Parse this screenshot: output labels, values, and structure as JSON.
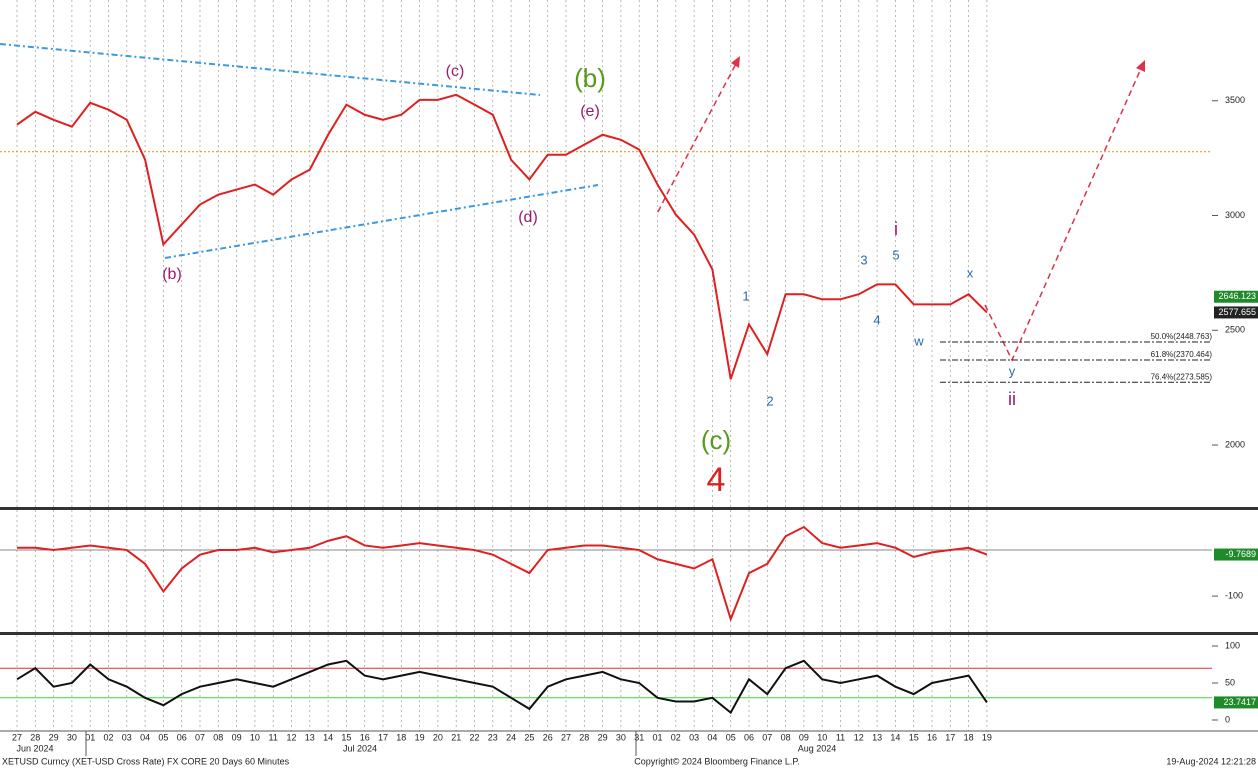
{
  "chart_data": [
    {
      "type": "line",
      "categories": [
        "27",
        "28",
        "29",
        "30",
        "01",
        "02",
        "03",
        "04",
        "05",
        "06",
        "07",
        "08",
        "09",
        "10",
        "11",
        "12",
        "13",
        "14",
        "15",
        "16",
        "17",
        "18",
        "19",
        "20",
        "21",
        "22",
        "23",
        "24",
        "25",
        "26",
        "27",
        "28",
        "29",
        "30",
        "31",
        "01",
        "02",
        "03",
        "04",
        "05",
        "06",
        "07",
        "08",
        "09",
        "10",
        "11",
        "12",
        "13",
        "14",
        "15",
        "16",
        "17",
        "18",
        "19"
      ],
      "month_labels": [
        "Jun 2024",
        "Jul 2024",
        "Aug 2024"
      ],
      "values": [
        3396,
        3452,
        3417,
        3387,
        3491,
        3461,
        3417,
        3243,
        2874,
        2961,
        3048,
        3091,
        3113,
        3135,
        3091,
        3157,
        3200,
        3352,
        3483,
        3439,
        3417,
        3439,
        3504,
        3504,
        3526,
        3483,
        3439,
        3243,
        3157,
        3265,
        3265,
        3309,
        3352,
        3330,
        3287,
        3135,
        3004,
        2917,
        2765,
        2287,
        2526,
        2396,
        2657,
        2657,
        2635,
        2635,
        2657,
        2700,
        2700,
        2613,
        2613,
        2613,
        2657,
        2577.655
      ],
      "color": "#e02020",
      "ylim": [
        1730,
        3939
      ],
      "yticks": [
        2000,
        2500,
        3000,
        3500
      ],
      "grid": true,
      "reference_line": {
        "value": 3278,
        "color": "#e0a020"
      },
      "extra_tag": {
        "value": 2646.123,
        "color": "#1f8a2a"
      },
      "fib_levels": [
        {
          "label": "50.0%(2448.763)",
          "value": 2448.763
        },
        {
          "label": "61.8%(2370.464)",
          "value": 2370.464
        },
        {
          "label": "76.4%(2273.585)",
          "value": 2273.585
        }
      ],
      "annotations": [
        {
          "text": "(c)",
          "color": "#9b1b6e"
        },
        {
          "text": "(b)",
          "color": "#5a9a1a"
        },
        {
          "text": "(e)",
          "color": "#9b1b6e"
        },
        {
          "text": "(d)",
          "color": "#9b1b6e"
        },
        {
          "text": "(b)",
          "color": "#9b1b6e"
        },
        {
          "text": "(c)",
          "color": "#5a9a1a"
        },
        {
          "text": "4",
          "color": "#e02020"
        },
        {
          "text": "1",
          "color": "#2e6aa8"
        },
        {
          "text": "2",
          "color": "#2e6aa8"
        },
        {
          "text": "3",
          "color": "#2e6aa8"
        },
        {
          "text": "5",
          "color": "#2e6aa8"
        },
        {
          "text": "i",
          "color": "#9b1b6e"
        },
        {
          "text": "4",
          "color": "#2e6aa8"
        },
        {
          "text": "w",
          "color": "#2e6aa8"
        },
        {
          "text": "x",
          "color": "#2e6aa8"
        },
        {
          "text": "y",
          "color": "#2e6aa8"
        },
        {
          "text": "ii",
          "color": "#9b1b6e"
        }
      ]
    },
    {
      "type": "line",
      "values": [
        5,
        5,
        0,
        5,
        10,
        5,
        0,
        -30,
        -90,
        -40,
        -10,
        0,
        0,
        5,
        -5,
        0,
        5,
        20,
        30,
        10,
        5,
        10,
        15,
        10,
        5,
        0,
        -10,
        -30,
        -50,
        0,
        5,
        10,
        10,
        5,
        0,
        -20,
        -30,
        -40,
        -20,
        -150,
        -50,
        -30,
        30,
        50,
        15,
        5,
        10,
        15,
        5,
        -15,
        -5,
        0,
        5,
        -9.7689
      ],
      "color": "#e02020",
      "ylim": [
        -178,
        87
      ],
      "yticks": [
        -100
      ],
      "zero_line": 0
    },
    {
      "type": "line",
      "values": [
        55,
        70,
        45,
        50,
        75,
        55,
        45,
        30,
        20,
        35,
        45,
        50,
        55,
        50,
        45,
        55,
        65,
        75,
        80,
        60,
        55,
        60,
        65,
        60,
        55,
        50,
        45,
        30,
        15,
        45,
        55,
        60,
        65,
        55,
        50,
        30,
        25,
        25,
        30,
        10,
        55,
        35,
        70,
        80,
        55,
        50,
        55,
        60,
        45,
        35,
        50,
        55,
        60,
        23.7417
      ],
      "color": "#111111",
      "ylim": [
        -13.5,
        113.5
      ],
      "yticks": [
        0,
        50,
        100
      ],
      "levels": [
        {
          "value": 70,
          "color": "#e03030"
        },
        {
          "value": 30,
          "color": "#30e030"
        }
      ]
    }
  ],
  "footer": {
    "left": "XETUSD Curncy (XET-USD Cross Rate) FX CORE 20 Days 60 Minutes",
    "center": "Copyright© 2024 Bloomberg Finance L.P.",
    "right": "19-Aug-2024 12:21:28"
  }
}
